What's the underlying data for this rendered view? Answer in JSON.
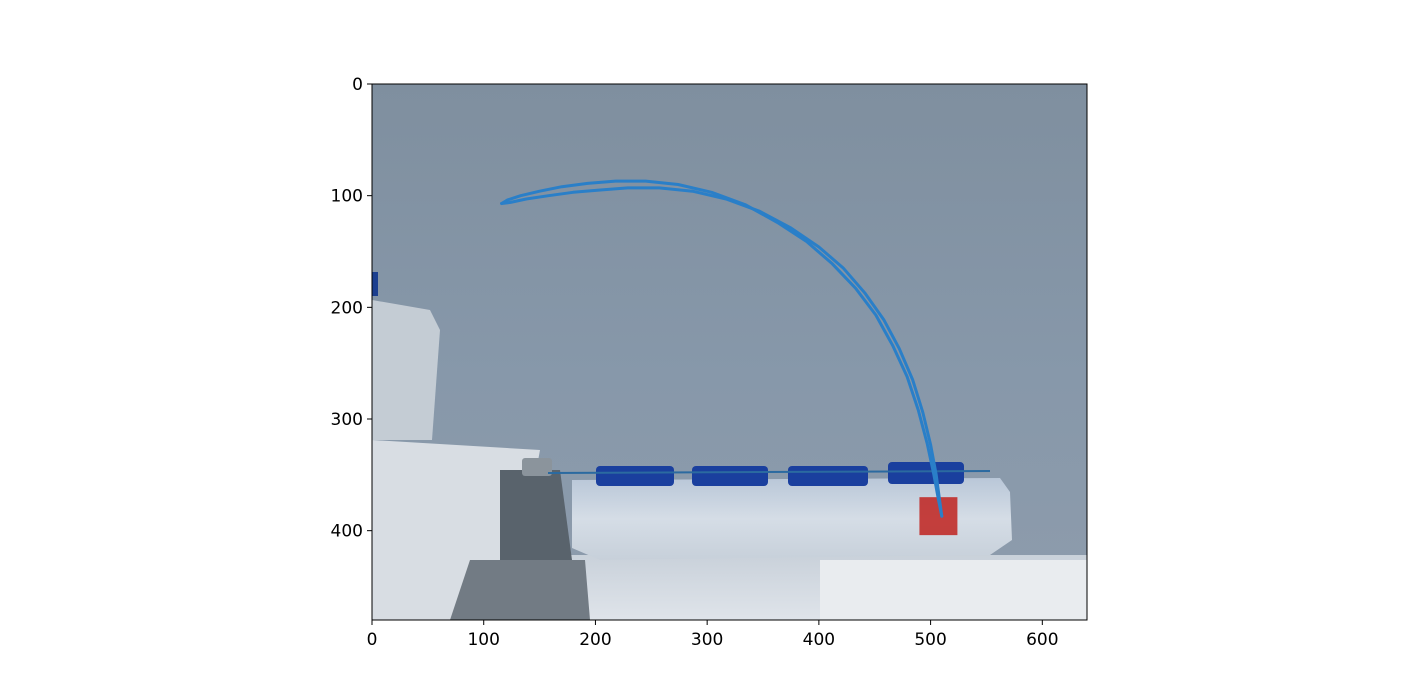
{
  "chart_data": {
    "type": "line",
    "title": "",
    "xlabel": "",
    "ylabel": "",
    "background": "photograph of a white silicone soft actuator with four blue segments lying on a gray table, with a small red square marker near its right tip",
    "xlim": [
      0,
      640
    ],
    "ylim": [
      480,
      0
    ],
    "y_axis_inverted": true,
    "grid": false,
    "legend": "none",
    "x_ticks": [
      0,
      100,
      200,
      300,
      400,
      500,
      600
    ],
    "y_ticks": [
      0,
      100,
      200,
      300,
      400
    ],
    "x_tick_labels": [
      "0",
      "100",
      "200",
      "300",
      "400",
      "500",
      "600"
    ],
    "y_tick_labels": [
      "0",
      "100",
      "200",
      "300",
      "400"
    ],
    "series": [
      {
        "color": "#2a7fc8",
        "x": [
          510,
          508,
          505,
          500,
          493,
          484,
          472,
          458,
          441,
          422,
          400,
          375,
          347,
          317,
          287,
          257,
          229,
          203,
          180,
          158,
          138,
          124,
          116
        ],
        "y": [
          387,
          372,
          350,
          323,
          294,
          265,
          237,
          211,
          187,
          165,
          146,
          129,
          114,
          103,
          96,
          93,
          93,
          95,
          97,
          100,
          103,
          106,
          107
        ]
      },
      {
        "color": "#2a7fc8",
        "x": [
          510,
          507,
          503,
          497,
          489,
          479,
          466,
          451,
          433,
          412,
          389,
          363,
          334,
          304,
          274,
          245,
          218,
          193,
          170,
          150,
          133,
          121,
          116
        ],
        "y": [
          387,
          372,
          350,
          322,
          292,
          262,
          234,
          207,
          183,
          161,
          141,
          124,
          108,
          97,
          90,
          87,
          87,
          89,
          92,
          96,
          100,
          104,
          107
        ]
      }
    ],
    "marker": {
      "label": "red square",
      "color": "#c0221e",
      "x": [
        490,
        524
      ],
      "y": [
        370,
        404
      ]
    }
  }
}
